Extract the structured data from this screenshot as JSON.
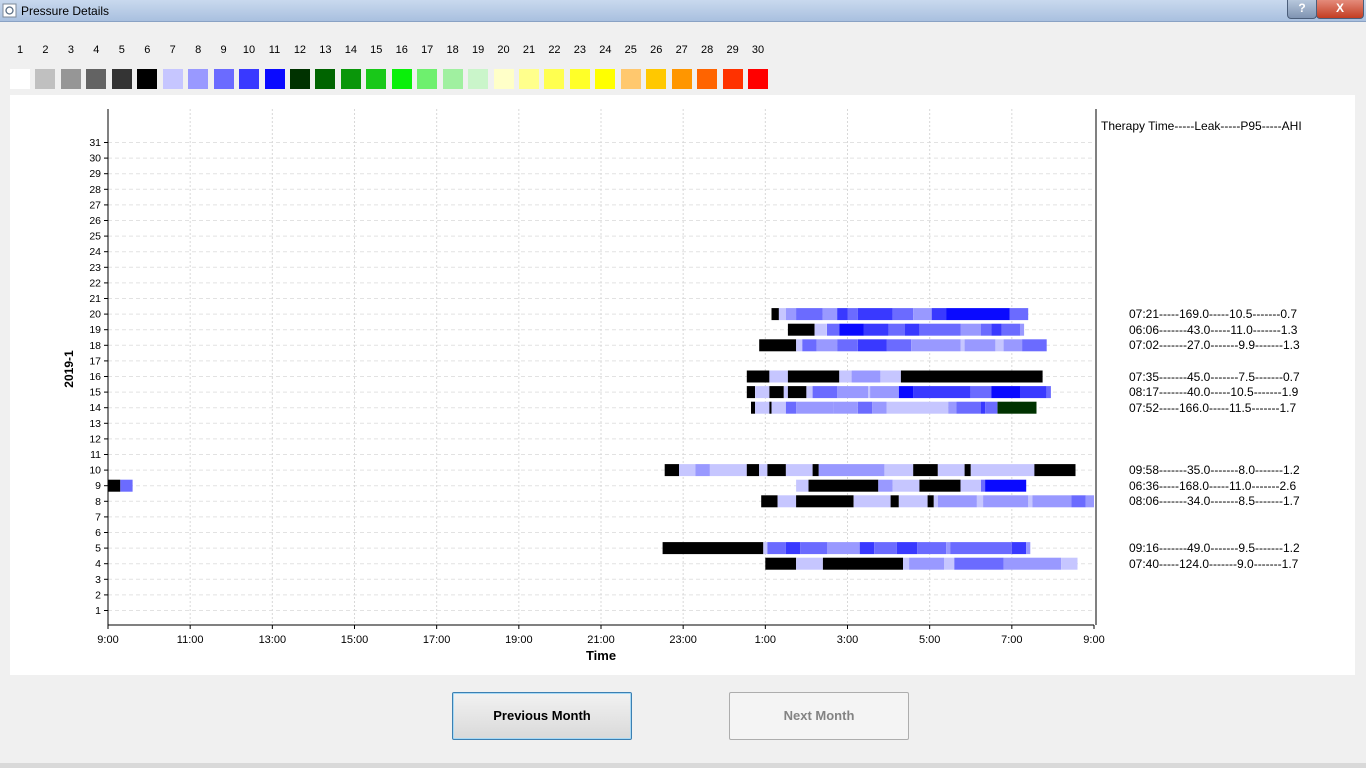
{
  "window": {
    "title": "Pressure Details",
    "help_label": "?",
    "close_label": "X"
  },
  "legend": {
    "numbers": [
      "1",
      "2",
      "3",
      "4",
      "5",
      "6",
      "7",
      "8",
      "9",
      "10",
      "11",
      "12",
      "13",
      "14",
      "15",
      "16",
      "17",
      "18",
      "19",
      "20",
      "21",
      "22",
      "23",
      "24",
      "25",
      "26",
      "27",
      "28",
      "29",
      "30"
    ],
    "colors": [
      "#ffffff",
      "#c0c0c0",
      "#969696",
      "#636363",
      "#343434",
      "#000000",
      "#c6c6ff",
      "#9999ff",
      "#6b6bff",
      "#3939ff",
      "#0a0aff",
      "#003200",
      "#006400",
      "#0a960a",
      "#19c819",
      "#0af00a",
      "#6ef06e",
      "#a0f0a0",
      "#caf5ca",
      "#ffffc8",
      "#ffff8c",
      "#ffff50",
      "#ffff28",
      "#ffff00",
      "#ffc86e",
      "#ffc800",
      "#ff9600",
      "#ff6400",
      "#ff3200",
      "#ff0000"
    ]
  },
  "chart_data": {
    "type": "gantt",
    "xlabel": "Time",
    "ylabel": "2019-1",
    "x_ticks": [
      "9:00",
      "11:00",
      "13:00",
      "15:00",
      "17:00",
      "19:00",
      "21:00",
      "23:00",
      "1:00",
      "3:00",
      "5:00",
      "7:00",
      "9:00"
    ],
    "y_ticks": [
      "1",
      "2",
      "3",
      "4",
      "5",
      "6",
      "7",
      "8",
      "9",
      "10",
      "11",
      "12",
      "13",
      "14",
      "15",
      "16",
      "17",
      "18",
      "19",
      "20",
      "21",
      "22",
      "23",
      "24",
      "25",
      "26",
      "27",
      "28",
      "29",
      "30",
      "31"
    ],
    "x_range_hours": [
      0,
      24
    ],
    "grid": true,
    "sessions": [
      {
        "day": 20,
        "segments": [
          [
            16.15,
            16.33,
            6
          ],
          [
            16.33,
            16.5,
            7
          ],
          [
            16.5,
            16.75,
            8
          ],
          [
            16.75,
            17.4,
            9
          ],
          [
            17.4,
            17.75,
            8
          ],
          [
            17.75,
            18.0,
            10
          ],
          [
            18.0,
            18.25,
            9
          ],
          [
            18.25,
            19.1,
            10
          ],
          [
            19.1,
            19.6,
            9
          ],
          [
            19.6,
            20.05,
            8
          ],
          [
            20.05,
            20.4,
            10
          ],
          [
            20.4,
            21.2,
            11
          ],
          [
            21.2,
            21.95,
            11
          ],
          [
            21.95,
            22.2,
            9
          ],
          [
            22.2,
            22.4,
            9
          ]
        ]
      },
      {
        "day": 19,
        "segments": [
          [
            16.55,
            17.2,
            6
          ],
          [
            17.2,
            17.5,
            7
          ],
          [
            17.5,
            17.8,
            9
          ],
          [
            17.8,
            18.4,
            11
          ],
          [
            18.4,
            19.0,
            10
          ],
          [
            19.0,
            19.4,
            9
          ],
          [
            19.4,
            19.75,
            10
          ],
          [
            19.75,
            20.75,
            9
          ],
          [
            20.75,
            21.25,
            8
          ],
          [
            21.25,
            21.5,
            9
          ],
          [
            21.5,
            21.75,
            10
          ],
          [
            21.75,
            22.2,
            9
          ],
          [
            22.2,
            22.3,
            8
          ]
        ]
      },
      {
        "day": 18,
        "segments": [
          [
            15.85,
            16.75,
            6
          ],
          [
            16.75,
            16.9,
            7
          ],
          [
            16.9,
            17.25,
            9
          ],
          [
            17.25,
            17.75,
            8
          ],
          [
            17.75,
            18.25,
            9
          ],
          [
            18.25,
            18.95,
            10
          ],
          [
            18.95,
            19.55,
            9
          ],
          [
            19.55,
            20.75,
            8
          ],
          [
            20.75,
            20.85,
            7
          ],
          [
            20.85,
            21.6,
            8
          ],
          [
            21.6,
            21.8,
            7
          ],
          [
            21.8,
            22.25,
            8
          ],
          [
            22.25,
            22.85,
            9
          ]
        ]
      },
      {
        "day": 16,
        "segments": [
          [
            15.55,
            16.1,
            6
          ],
          [
            16.1,
            16.55,
            7
          ],
          [
            16.55,
            17.8,
            6
          ],
          [
            17.8,
            18.1,
            7
          ],
          [
            18.1,
            18.8,
            8
          ],
          [
            18.8,
            19.3,
            7
          ],
          [
            19.3,
            22.75,
            6
          ]
        ]
      },
      {
        "day": 15,
        "segments": [
          [
            15.55,
            15.75,
            6
          ],
          [
            15.75,
            16.1,
            7
          ],
          [
            16.1,
            16.45,
            6
          ],
          [
            16.45,
            16.55,
            7
          ],
          [
            16.55,
            17.0,
            6
          ],
          [
            17.0,
            17.15,
            7
          ],
          [
            17.15,
            17.75,
            9
          ],
          [
            17.75,
            18.5,
            8
          ],
          [
            18.5,
            18.55,
            7
          ],
          [
            18.55,
            19.25,
            8
          ],
          [
            19.25,
            19.6,
            11
          ],
          [
            19.6,
            21.0,
            10
          ],
          [
            21.0,
            21.5,
            9
          ],
          [
            21.5,
            22.2,
            11
          ],
          [
            22.2,
            22.85,
            10
          ],
          [
            22.85,
            22.95,
            9
          ]
        ]
      },
      {
        "day": 14,
        "segments": [
          [
            15.65,
            15.75,
            6
          ],
          [
            15.75,
            16.1,
            7
          ],
          [
            16.1,
            16.15,
            6
          ],
          [
            16.15,
            16.5,
            7
          ],
          [
            16.5,
            16.75,
            9
          ],
          [
            16.75,
            17.65,
            8
          ],
          [
            17.65,
            18.25,
            8
          ],
          [
            18.25,
            18.6,
            9
          ],
          [
            18.6,
            18.95,
            8
          ],
          [
            18.95,
            20.45,
            7
          ],
          [
            20.45,
            20.65,
            8
          ],
          [
            20.65,
            21.25,
            9
          ],
          [
            21.25,
            21.35,
            10
          ],
          [
            21.35,
            21.65,
            9
          ],
          [
            21.65,
            22.6,
            12
          ]
        ]
      },
      {
        "day": 10,
        "segments": [
          [
            13.55,
            13.9,
            6
          ],
          [
            13.9,
            14.3,
            7
          ],
          [
            14.3,
            14.65,
            8
          ],
          [
            14.65,
            15.55,
            7
          ],
          [
            15.55,
            15.85,
            6
          ],
          [
            15.85,
            16.05,
            7
          ],
          [
            16.05,
            16.5,
            6
          ],
          [
            16.5,
            17.15,
            7
          ],
          [
            17.15,
            17.3,
            6
          ],
          [
            17.3,
            18.9,
            8
          ],
          [
            18.9,
            19.6,
            7
          ],
          [
            19.6,
            20.2,
            6
          ],
          [
            20.2,
            20.85,
            7
          ],
          [
            20.85,
            21.0,
            6
          ],
          [
            21.0,
            22.55,
            7
          ],
          [
            22.55,
            23.55,
            6
          ]
        ]
      },
      {
        "day": 9,
        "segments": [
          [
            0.0,
            0.3,
            6
          ],
          [
            0.3,
            0.6,
            9
          ],
          [
            16.75,
            17.05,
            7
          ],
          [
            17.05,
            18.75,
            6
          ],
          [
            18.75,
            19.1,
            8
          ],
          [
            19.1,
            19.75,
            7
          ],
          [
            19.75,
            20.75,
            6
          ],
          [
            20.75,
            21.25,
            7
          ],
          [
            21.25,
            21.35,
            9
          ],
          [
            21.35,
            22.35,
            11
          ]
        ]
      },
      {
        "day": 8,
        "segments": [
          [
            15.9,
            16.3,
            6
          ],
          [
            16.3,
            16.75,
            7
          ],
          [
            16.75,
            18.15,
            6
          ],
          [
            18.15,
            19.05,
            7
          ],
          [
            19.05,
            19.25,
            6
          ],
          [
            19.25,
            19.95,
            7
          ],
          [
            19.95,
            20.1,
            6
          ],
          [
            20.1,
            20.2,
            7
          ],
          [
            20.2,
            21.15,
            8
          ],
          [
            21.15,
            21.3,
            7
          ],
          [
            21.3,
            22.4,
            8
          ],
          [
            22.4,
            22.5,
            7
          ],
          [
            22.5,
            23.45,
            8
          ],
          [
            23.45,
            23.8,
            9
          ],
          [
            23.8,
            24.0,
            8
          ]
        ]
      },
      {
        "day": 5,
        "segments": [
          [
            13.5,
            15.95,
            6
          ],
          [
            15.95,
            16.05,
            7
          ],
          [
            16.05,
            16.5,
            9
          ],
          [
            16.5,
            16.85,
            10
          ],
          [
            16.85,
            17.5,
            9
          ],
          [
            17.5,
            18.3,
            8
          ],
          [
            18.3,
            18.65,
            10
          ],
          [
            18.65,
            19.2,
            9
          ],
          [
            19.2,
            19.7,
            10
          ],
          [
            19.7,
            20.4,
            9
          ],
          [
            20.4,
            20.5,
            8
          ],
          [
            20.5,
            22.0,
            9
          ],
          [
            22.0,
            22.35,
            10
          ],
          [
            22.35,
            22.45,
            8
          ]
        ]
      },
      {
        "day": 4,
        "segments": [
          [
            16.0,
            16.75,
            6
          ],
          [
            16.75,
            17.4,
            7
          ],
          [
            17.4,
            19.35,
            6
          ],
          [
            19.35,
            19.5,
            7
          ],
          [
            19.5,
            20.35,
            8
          ],
          [
            20.35,
            20.6,
            7
          ],
          [
            20.6,
            21.8,
            9
          ],
          [
            21.8,
            23.2,
            8
          ],
          [
            23.2,
            23.6,
            7
          ]
        ]
      }
    ],
    "stats_header": "Therapy Time-----Leak-----P95-----AHI",
    "stats": [
      {
        "day": 20,
        "text": "07:21-----169.0-----10.5-------0.7"
      },
      {
        "day": 19,
        "text": "06:06-------43.0-----11.0-------1.3"
      },
      {
        "day": 18,
        "text": "07:02-------27.0-------9.9-------1.3"
      },
      {
        "day": 16,
        "text": "07:35-------45.0-------7.5-------0.7"
      },
      {
        "day": 15,
        "text": "08:17-------40.0-----10.5-------1.9"
      },
      {
        "day": 14,
        "text": "07:52-----166.0-----11.5-------1.7"
      },
      {
        "day": 10,
        "text": "09:58-------35.0-------8.0-------1.2"
      },
      {
        "day": 9,
        "text": "06:36-----168.0-----11.0-------2.6"
      },
      {
        "day": 8,
        "text": "08:06-------34.0-------8.5-------1.7"
      },
      {
        "day": 5,
        "text": "09:16-------49.0-------9.5-------1.2"
      },
      {
        "day": 4,
        "text": "07:40-----124.0-------9.0-------1.7"
      }
    ]
  },
  "buttons": {
    "prev_label": "Previous Month",
    "next_label": "Next Month"
  }
}
